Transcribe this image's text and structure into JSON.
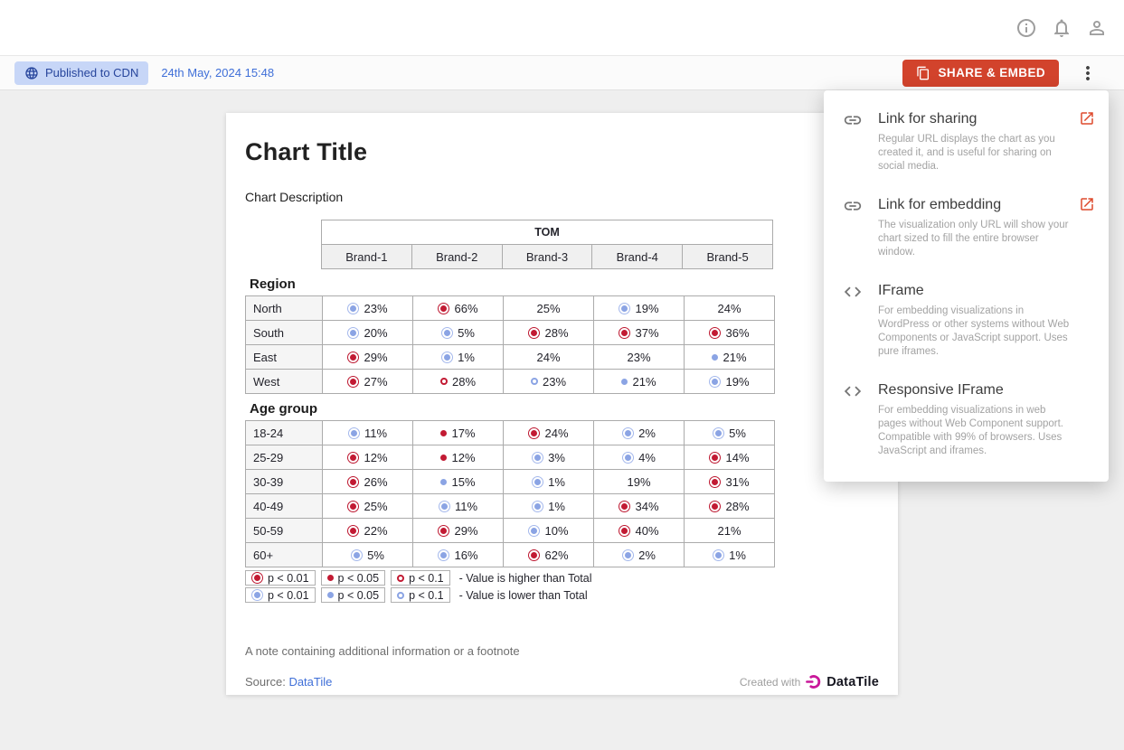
{
  "header": {
    "icons": [
      "info-icon",
      "notifications-icon",
      "user-icon"
    ]
  },
  "toolbar": {
    "badge_label": "Published to CDN",
    "timestamp": "24th May, 2024 15:48",
    "share_button_label": "SHARE & EMBED"
  },
  "share_menu": {
    "items": [
      {
        "icon": "link",
        "title": "Link for sharing",
        "description": "Regular URL displays the chart as you created it, and is useful for sharing on social media.",
        "external": true
      },
      {
        "icon": "link",
        "title": "Link for embedding",
        "description": "The visualization only URL will show your chart sized to fill the entire browser window.",
        "external": true
      },
      {
        "icon": "code",
        "title": "IFrame",
        "description": "For embedding visualizations in WordPress or other systems without Web Components or JavaScript support. Uses pure iframes.",
        "external": false
      },
      {
        "icon": "code",
        "title": "Responsive IFrame",
        "description": "For embedding visualizations in web pages without Web Component support. Compatible with 99% of browsers. Uses JavaScript and iframes.",
        "external": false
      }
    ]
  },
  "card": {
    "title": "Chart Title",
    "description": "Chart Description",
    "note": "A note containing additional information or a footnote",
    "source_label": "Source:",
    "source_link_text": "DataTile",
    "created_with_label": "Created with",
    "brand_name": "DataTile"
  },
  "chart_data": {
    "type": "table",
    "title": "Chart Title",
    "group_header": "TOM",
    "columns": [
      "Brand-1",
      "Brand-2",
      "Brand-3",
      "Brand-4",
      "Brand-5"
    ],
    "marker_codes": {
      "hb": "p < 0.01 higher than Total (red double circle)",
      "hd": "p < 0.05 higher than Total (red dot)",
      "hr": "p < 0.1 higher than Total (red ring)",
      "lb": "p < 0.01 lower than Total (blue double circle)",
      "ld": "p < 0.05 lower than Total (blue dot)",
      "lr": "p < 0.1 lower than Total (blue ring)",
      "": "no significance marker"
    },
    "sections": [
      {
        "label": "Region",
        "rows": [
          {
            "label": "North",
            "cells": [
              {
                "marker": "lb",
                "value": "23%"
              },
              {
                "marker": "hb",
                "value": "66%"
              },
              {
                "marker": "",
                "value": "25%"
              },
              {
                "marker": "lb",
                "value": "19%"
              },
              {
                "marker": "",
                "value": "24%"
              }
            ]
          },
          {
            "label": "South",
            "cells": [
              {
                "marker": "lb",
                "value": "20%"
              },
              {
                "marker": "lb",
                "value": "5%"
              },
              {
                "marker": "hb",
                "value": "28%"
              },
              {
                "marker": "hb",
                "value": "37%"
              },
              {
                "marker": "hb",
                "value": "36%"
              }
            ]
          },
          {
            "label": "East",
            "cells": [
              {
                "marker": "hb",
                "value": "29%"
              },
              {
                "marker": "lb",
                "value": "1%"
              },
              {
                "marker": "",
                "value": "24%"
              },
              {
                "marker": "",
                "value": "23%"
              },
              {
                "marker": "ld",
                "value": "21%"
              }
            ]
          },
          {
            "label": "West",
            "cells": [
              {
                "marker": "hb",
                "value": "27%"
              },
              {
                "marker": "hr",
                "value": "28%"
              },
              {
                "marker": "lr",
                "value": "23%"
              },
              {
                "marker": "ld",
                "value": "21%"
              },
              {
                "marker": "lb",
                "value": "19%"
              }
            ]
          }
        ]
      },
      {
        "label": "Age group",
        "rows": [
          {
            "label": "18-24",
            "cells": [
              {
                "marker": "lb",
                "value": "11%"
              },
              {
                "marker": "hd",
                "value": "17%"
              },
              {
                "marker": "hb",
                "value": "24%"
              },
              {
                "marker": "lb",
                "value": "2%"
              },
              {
                "marker": "lb",
                "value": "5%"
              }
            ]
          },
          {
            "label": "25-29",
            "cells": [
              {
                "marker": "hb",
                "value": "12%"
              },
              {
                "marker": "hd",
                "value": "12%"
              },
              {
                "marker": "lb",
                "value": "3%"
              },
              {
                "marker": "lb",
                "value": "4%"
              },
              {
                "marker": "hb",
                "value": "14%"
              }
            ]
          },
          {
            "label": "30-39",
            "cells": [
              {
                "marker": "hb",
                "value": "26%"
              },
              {
                "marker": "ld",
                "value": "15%"
              },
              {
                "marker": "lb",
                "value": "1%"
              },
              {
                "marker": "",
                "value": "19%"
              },
              {
                "marker": "hb",
                "value": "31%"
              }
            ]
          },
          {
            "label": "40-49",
            "cells": [
              {
                "marker": "hb",
                "value": "25%"
              },
              {
                "marker": "lb",
                "value": "11%"
              },
              {
                "marker": "lb",
                "value": "1%"
              },
              {
                "marker": "hb",
                "value": "34%"
              },
              {
                "marker": "hb",
                "value": "28%"
              }
            ]
          },
          {
            "label": "50-59",
            "cells": [
              {
                "marker": "hb",
                "value": "22%"
              },
              {
                "marker": "hb",
                "value": "29%"
              },
              {
                "marker": "lb",
                "value": "10%"
              },
              {
                "marker": "hb",
                "value": "40%"
              },
              {
                "marker": "",
                "value": "21%"
              }
            ]
          },
          {
            "label": "60+",
            "cells": [
              {
                "marker": "lb",
                "value": "5%"
              },
              {
                "marker": "lb",
                "value": "16%"
              },
              {
                "marker": "hb",
                "value": "62%"
              },
              {
                "marker": "lb",
                "value": "2%"
              },
              {
                "marker": "lb",
                "value": "1%"
              }
            ]
          }
        ]
      }
    ],
    "legend": [
      {
        "items": [
          {
            "marker": "hb",
            "label": "p < 0.01"
          },
          {
            "marker": "hd",
            "label": "p < 0.05"
          },
          {
            "marker": "hr",
            "label": "p < 0.1"
          }
        ],
        "text": "- Value is higher than Total"
      },
      {
        "items": [
          {
            "marker": "lb",
            "label": "p < 0.01"
          },
          {
            "marker": "ld",
            "label": "p < 0.05"
          },
          {
            "marker": "lr",
            "label": "p < 0.1"
          }
        ],
        "text": "- Value is lower than Total"
      }
    ]
  },
  "colors": {
    "accent_red": "#d2432c",
    "higher_marker": "#c21a33",
    "lower_marker": "#8ba4e4",
    "link_blue": "#3f6fd8",
    "badge_bg": "#c7d6f7",
    "badge_text": "#27459c",
    "brand_logo_magenta": "#c9189a"
  }
}
